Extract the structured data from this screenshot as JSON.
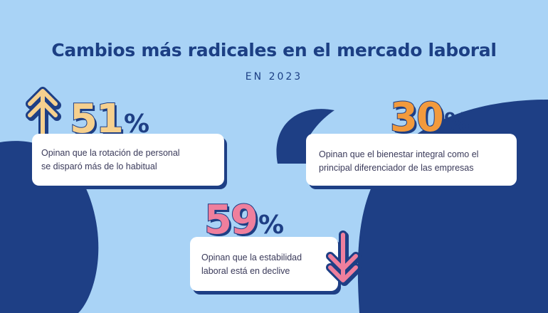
{
  "title": "Cambios más radicales en el mercado laboral",
  "subtitle": "EN 2023",
  "stats": [
    {
      "number": "51",
      "percent": "%",
      "text_line1": "Opinan que la rotación de personal",
      "text_line2": "se disparó más de lo habitual",
      "color": "#f6d08e",
      "trend": "up"
    },
    {
      "number": "30",
      "percent": "%",
      "text_line1": "Opinan que el bienestar integral como el",
      "text_line2": "principal diferenciador de las empresas",
      "color": "#f29a3d"
    },
    {
      "number": "59",
      "percent": "%",
      "text_line1": "Opinan que la estabilidad",
      "text_line2": "laboral está en declive",
      "color": "#ef7f9d",
      "trend": "down"
    }
  ],
  "colors": {
    "background": "#a9d3f6",
    "navy": "#1e3f85",
    "card": "#ffffff"
  }
}
